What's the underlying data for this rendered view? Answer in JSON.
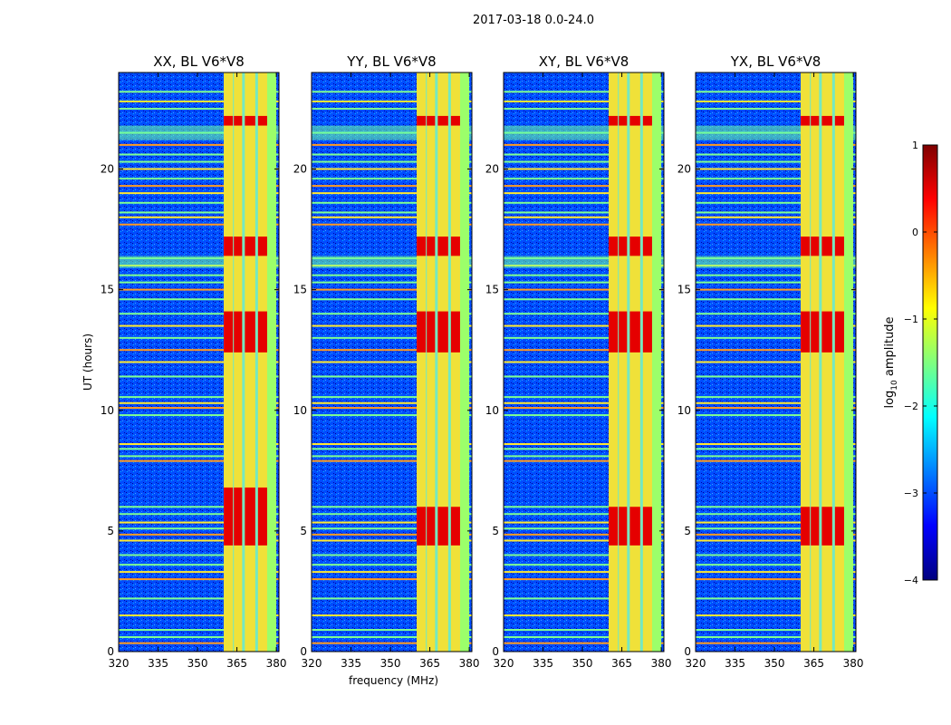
{
  "figure_title": "2017-03-18 0.0-24.0",
  "colormap": [
    "#00007f",
    "#0000ff",
    "#007fff",
    "#00ffff",
    "#7fff7f",
    "#ffff00",
    "#ff7f00",
    "#ff0000",
    "#7f0000"
  ],
  "chart_data": [
    {
      "type": "heatmap",
      "title": "XX, BL V6*V8",
      "xlabel": "",
      "ylabel": "UT (hours)",
      "xlim": [
        320,
        381
      ],
      "ylim": [
        0,
        24
      ],
      "xticks": [
        320,
        335,
        350,
        365,
        380
      ],
      "yticks": [
        0,
        5,
        10,
        15,
        20
      ],
      "value_label": "log10 amplitude",
      "background_log_amplitude": -3,
      "signal_band_mhz": [
        360,
        380
      ],
      "signal_channels_mhz": [
        [
          360.0,
          363.5
        ],
        [
          363.8,
          367.0
        ],
        [
          368.0,
          372.0
        ],
        [
          373.0,
          376.5
        ]
      ],
      "bright_intervals_hours": [
        [
          21.8,
          22.2
        ],
        [
          16.4,
          17.2
        ],
        [
          12.4,
          14.1
        ],
        [
          4.4,
          6.8
        ]
      ],
      "max_log_amplitude": 1
    },
    {
      "type": "heatmap",
      "title": "YY, BL V6*V8",
      "xlabel": "frequency (MHz)",
      "ylabel": "",
      "xlim": [
        320,
        381
      ],
      "ylim": [
        0,
        24
      ],
      "xticks": [
        320,
        335,
        350,
        365,
        380
      ],
      "yticks": [
        0,
        5,
        10,
        15,
        20
      ],
      "value_label": "log10 amplitude",
      "background_log_amplitude": -3,
      "signal_band_mhz": [
        360,
        380
      ],
      "signal_channels_mhz": [
        [
          360.0,
          363.5
        ],
        [
          363.8,
          367.0
        ],
        [
          368.0,
          372.0
        ],
        [
          373.0,
          376.5
        ]
      ],
      "bright_intervals_hours": [
        [
          21.8,
          22.2
        ],
        [
          16.4,
          17.2
        ],
        [
          12.4,
          14.1
        ],
        [
          4.4,
          6.0
        ]
      ],
      "max_log_amplitude": 1
    },
    {
      "type": "heatmap",
      "title": "XY, BL V6*V8",
      "xlabel": "",
      "ylabel": "",
      "xlim": [
        320,
        381
      ],
      "ylim": [
        0,
        24
      ],
      "xticks": [
        320,
        335,
        350,
        365,
        380
      ],
      "yticks": [
        0,
        5,
        10,
        15,
        20
      ],
      "value_label": "log10 amplitude",
      "background_log_amplitude": -3,
      "signal_band_mhz": [
        360,
        380
      ],
      "signal_channels_mhz": [
        [
          360.0,
          363.5
        ],
        [
          363.8,
          367.0
        ],
        [
          368.0,
          372.0
        ],
        [
          373.0,
          376.5
        ]
      ],
      "bright_intervals_hours": [
        [
          21.8,
          22.2
        ],
        [
          16.4,
          17.2
        ],
        [
          12.4,
          14.1
        ],
        [
          4.4,
          6.0
        ]
      ],
      "max_log_amplitude": 1
    },
    {
      "type": "heatmap",
      "title": "YX, BL V6*V8",
      "xlabel": "",
      "ylabel": "",
      "xlim": [
        320,
        381
      ],
      "ylim": [
        0,
        24
      ],
      "xticks": [
        320,
        335,
        350,
        365,
        380
      ],
      "yticks": [
        0,
        5,
        10,
        15,
        20
      ],
      "value_label": "log10 amplitude",
      "background_log_amplitude": -3,
      "signal_band_mhz": [
        360,
        380
      ],
      "signal_channels_mhz": [
        [
          360.0,
          363.5
        ],
        [
          363.8,
          367.0
        ],
        [
          368.0,
          372.0
        ],
        [
          373.0,
          376.5
        ]
      ],
      "bright_intervals_hours": [
        [
          21.8,
          22.2
        ],
        [
          16.4,
          17.2
        ],
        [
          12.4,
          14.1
        ],
        [
          4.4,
          6.0
        ]
      ],
      "max_log_amplitude": 1
    }
  ],
  "rfi_lines_hours": [
    0.35,
    0.6,
    0.9,
    1.5,
    2.2,
    3.0,
    3.3,
    3.6,
    4.0,
    4.6,
    4.85,
    5.1,
    5.35,
    5.7,
    6.0,
    7.9,
    8.1,
    8.4,
    8.6,
    9.8,
    10.1,
    10.3,
    10.55,
    11.4,
    12.0,
    12.5,
    13.0,
    13.5,
    14.0,
    14.6,
    15.0,
    15.3,
    15.6,
    16.0,
    16.3,
    17.7,
    18.0,
    18.2,
    18.6,
    19.0,
    19.3,
    19.6,
    20.0,
    20.3,
    20.6,
    21.0,
    21.5,
    22.5,
    22.8,
    23.2
  ],
  "colorbar": {
    "label": "log",
    "label_sub": "10",
    "label_rest": " amplitude",
    "ticks": [
      {
        "value": 1,
        "label": "1"
      },
      {
        "value": 0,
        "label": "0"
      },
      {
        "value": -1,
        "label": "−1"
      },
      {
        "value": -2,
        "label": "−2"
      },
      {
        "value": -3,
        "label": "−3"
      },
      {
        "value": -4,
        "label": "−4"
      }
    ],
    "range": [
      -4,
      1
    ]
  }
}
